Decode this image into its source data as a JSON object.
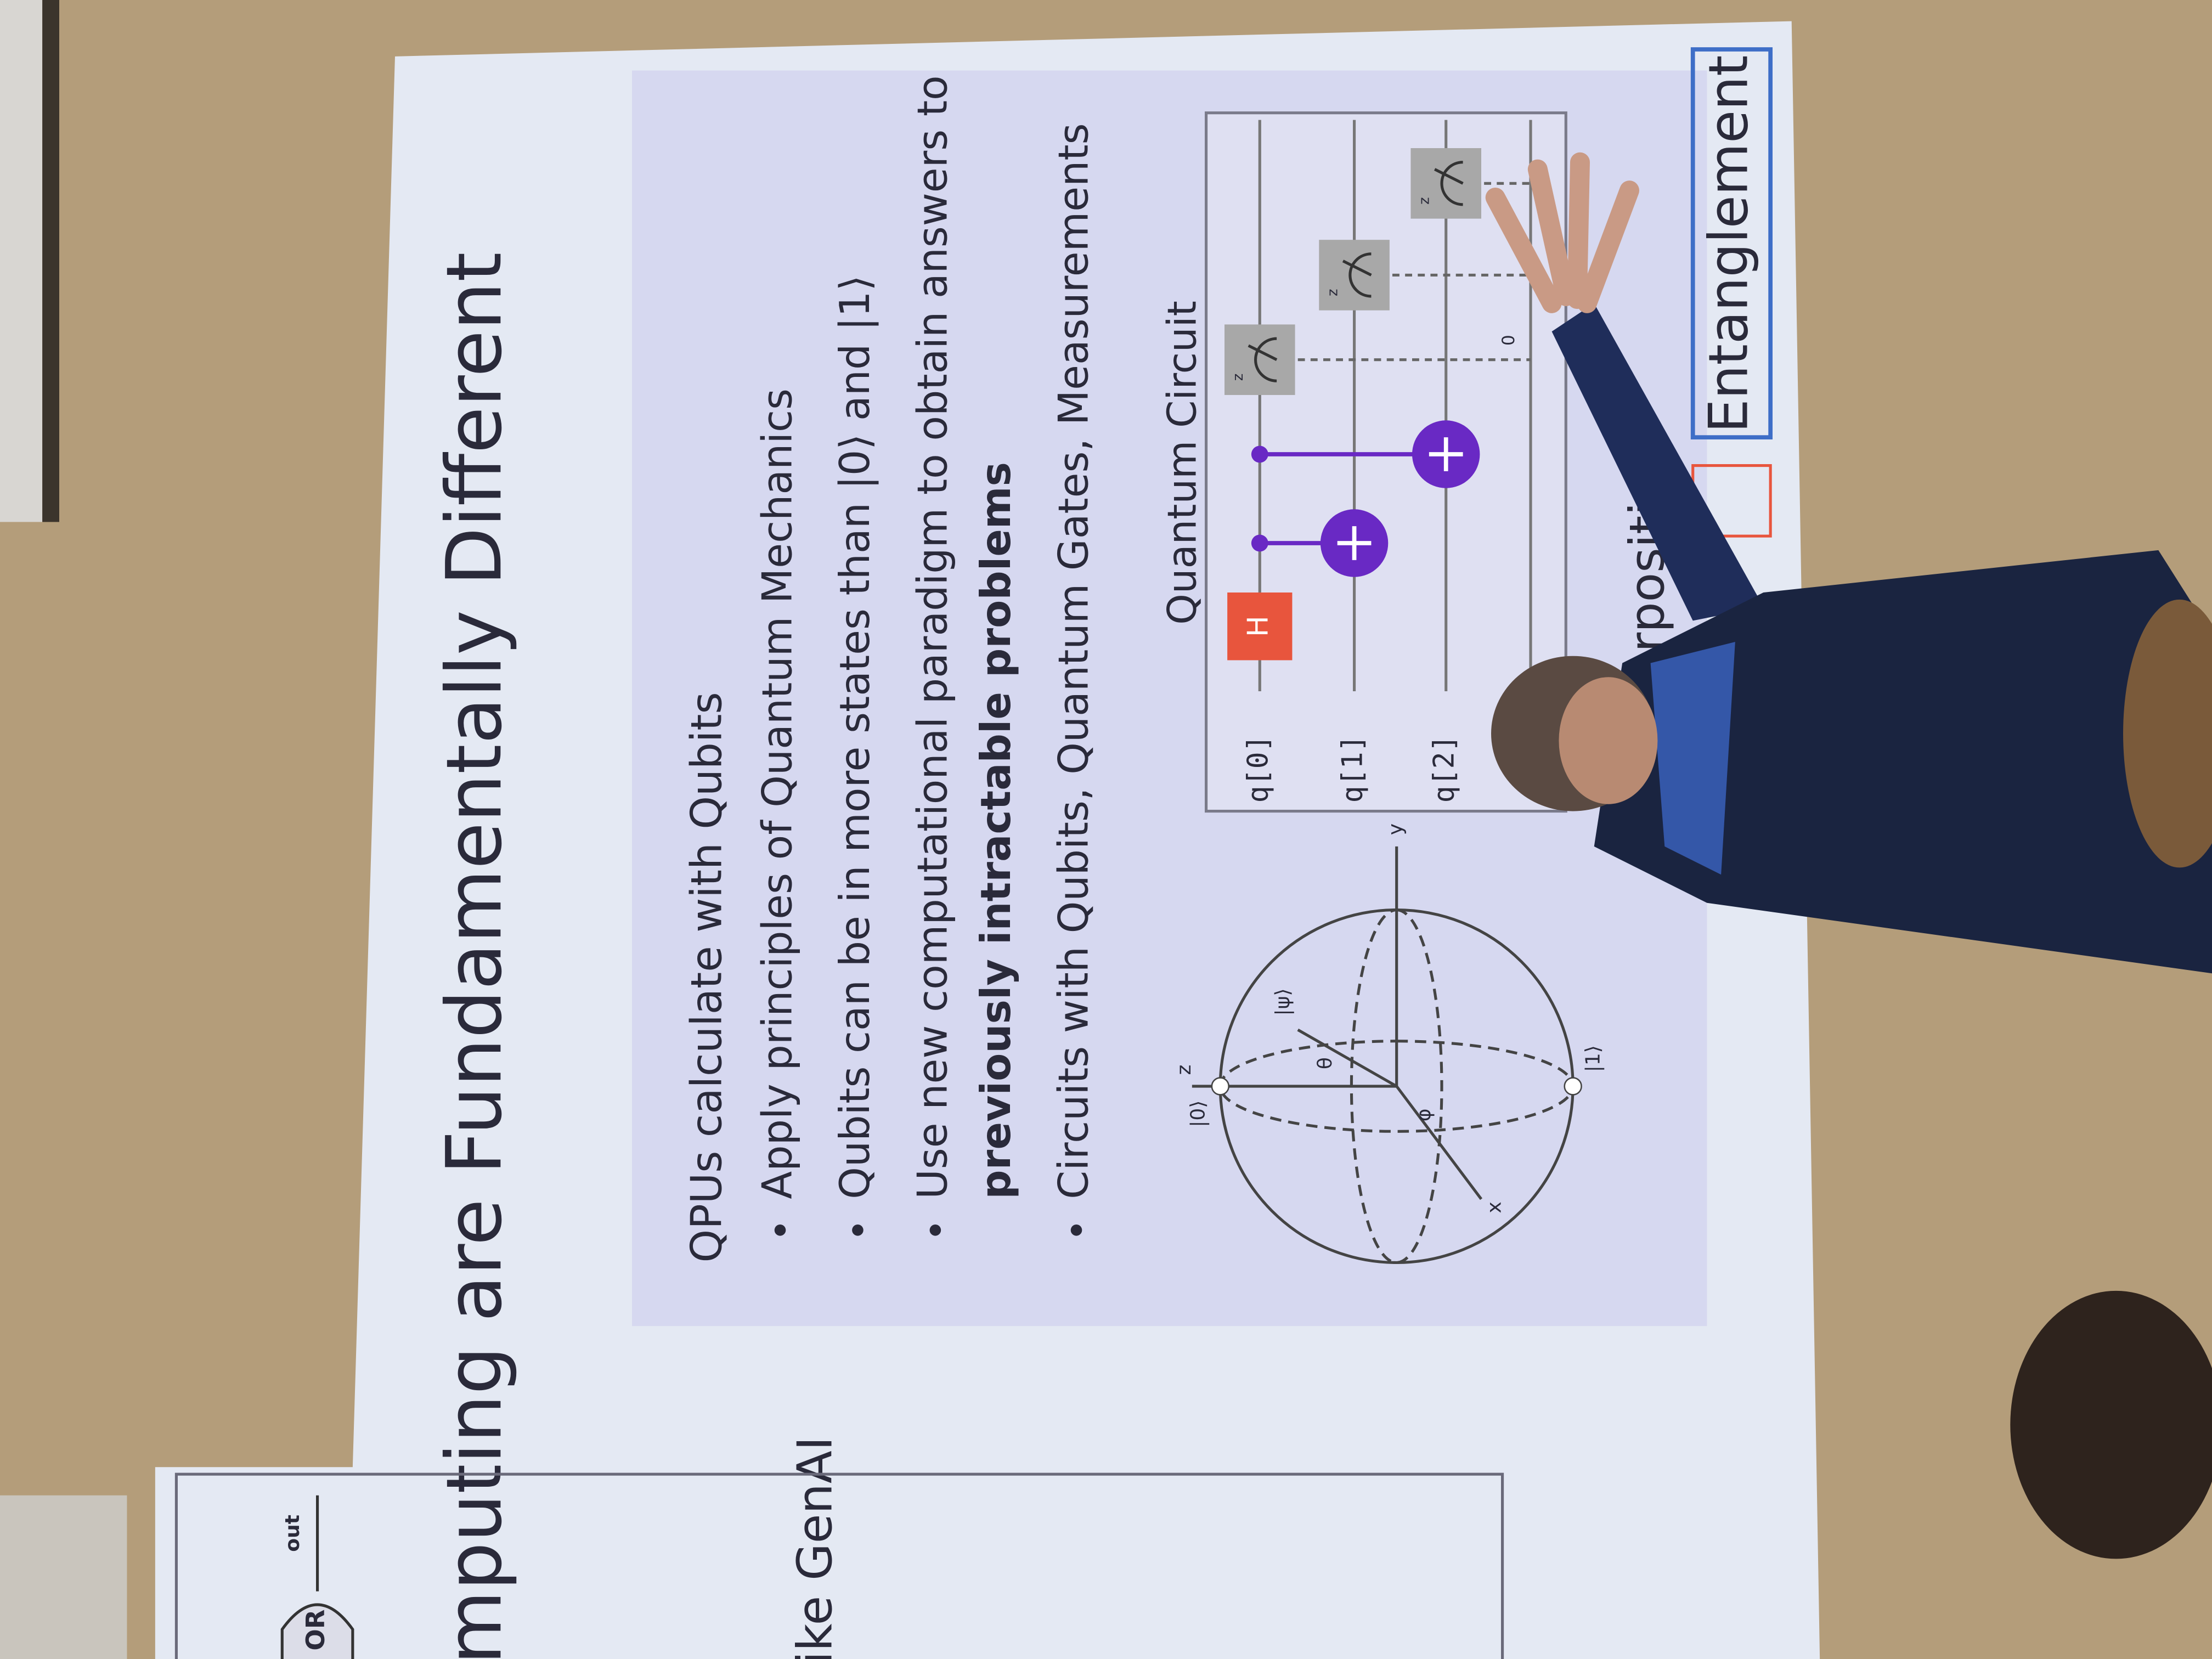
{
  "slide": {
    "title": "mputing are Fundamentally Different",
    "left_text": "ike GenAI",
    "gate": {
      "label": "OR",
      "output": "out"
    },
    "heading": "QPUs calculate with Qubits",
    "bullets": [
      [
        "Apply principles of Quantum Mechanics"
      ],
      [
        "Qubits can be in more states than |0⟩ and |1⟩"
      ],
      [
        "Use new computational paradigm to obtain answers to",
        "previously intractable problems"
      ],
      [
        "Circuits with Qubits, Quantum Gates, Measurements"
      ]
    ],
    "bloch": {
      "zero": "|0⟩",
      "one": "|1⟩",
      "psi": "|ψ⟩",
      "theta": "θ",
      "phi": "φ",
      "x": "x",
      "y": "y",
      "z": "z"
    },
    "circuit": {
      "title": "Quantum Circuit",
      "qubits": [
        "q[0]",
        "q[1]",
        "q[2]"
      ],
      "h": "H",
      "cbit": "0",
      "measure": "z"
    },
    "tabs": {
      "superposition": "uperposition",
      "entanglement": "Entanglement"
    }
  }
}
